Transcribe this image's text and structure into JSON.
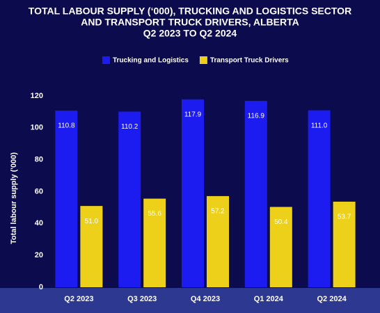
{
  "chart_data": {
    "type": "bar",
    "title": [
      "TOTAL LABOUR SUPPLY (‘000), TRUCKING AND LOGISTICS SECTOR",
      "AND TRANSPORT TRUCK DRIVERS, ALBERTA",
      "Q2 2023 TO Q2 2024"
    ],
    "y_label": "Total labour supply ('000)",
    "categories": [
      "Q2 2023",
      "Q3 2023",
      "Q4 2023",
      "Q1 2024",
      "Q2 2024"
    ],
    "series": [
      {
        "name": "Trucking and Logistics",
        "color": "#1c1cf0",
        "values": [
          110.8,
          110.2,
          117.9,
          116.9,
          111
        ],
        "value_labels": [
          "110.8",
          "110.2",
          "117.9",
          "116.9",
          "111.0"
        ]
      },
      {
        "name": "Transport Truck Drivers",
        "color": "#ecd019",
        "values": [
          51,
          55.6,
          57.2,
          50.4,
          53.7
        ],
        "value_labels": [
          "51.0",
          "55.6",
          "57.2",
          "50.4",
          "53.7"
        ]
      }
    ],
    "ylim": [
      0,
      120
    ],
    "yticks": [
      0,
      20,
      40,
      60,
      80,
      100,
      120
    ],
    "grid": false
  }
}
